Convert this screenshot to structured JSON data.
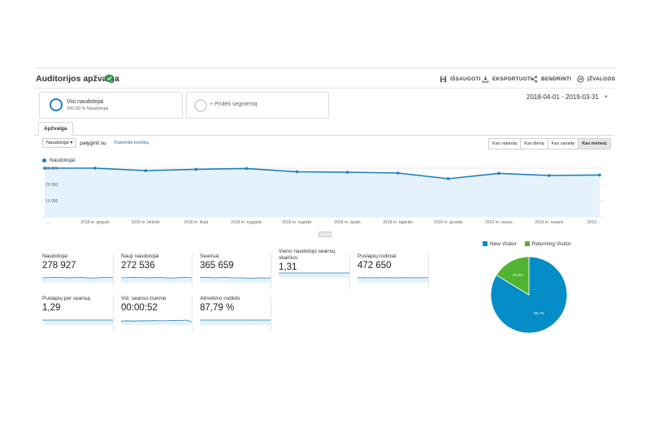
{
  "header": {
    "title": "Auditorijos apžvalga",
    "actions": [
      {
        "label": "IŠSAUGOTI",
        "icon": "save-icon"
      },
      {
        "label": "EKSPORTUOTI",
        "icon": "download-icon"
      },
      {
        "label": "BENDRINTI",
        "icon": "share-icon"
      },
      {
        "label": "ĮŽVALGOS",
        "icon": "insights-icon"
      }
    ]
  },
  "segments": [
    {
      "title": "Visi naudotojai",
      "subtitle": "100,00 % Naudotojai"
    },
    {
      "title": "+ Pridėti segmentą"
    }
  ],
  "date_range": "2018-04-01 - 2019-03-31",
  "tabs": [
    "Apžvalga"
  ],
  "controls": {
    "metric_select": "Naudotojai",
    "compare_text": "palyginti su",
    "pick_metric": "Pasirinkti metriką",
    "granularity": [
      "Kas valandą",
      "Kas dieną",
      "Kas savaitę",
      "Kas mėnesį"
    ],
    "granularity_active": "Kas mėnesį"
  },
  "colors": {
    "accent": "#1c7fc0",
    "green": "#4cae3f",
    "fill": "#e5f2fb"
  },
  "chart_data": [
    {
      "type": "area",
      "series": [
        {
          "name": "Naudotojai",
          "values": [
            30000,
            30000,
            28500,
            29300,
            29800,
            27800,
            27500,
            27000,
            23500,
            26800,
            25500,
            25800
          ]
        }
      ],
      "x": [
        "...",
        "2018 m. gegužė",
        "2018 m. birželis",
        "2018 m. liepa",
        "2018 m. rugpjūtis",
        "2018 m. rugsėjis",
        "2018 m. spalis",
        "2018 m. lapkritis",
        "2018 m. gruodis",
        "2019 m. sausis",
        "2019 m. vasaris",
        "2019..."
      ],
      "y_ticks": [
        "30 000",
        "20 000",
        "10 000"
      ],
      "ylim": [
        0,
        33000
      ],
      "grid": true
    },
    {
      "type": "pie",
      "legend": [
        "New Visitor",
        "Returning Visitor"
      ],
      "values": [
        83.7,
        16.3
      ],
      "labels": [
        "83,7%",
        "16,3%"
      ],
      "colors": [
        "#058dc7",
        "#50b432"
      ],
      "legend_position": "top"
    }
  ],
  "metrics": [
    {
      "label": "Naudotojai",
      "value": "278 927",
      "spark": [
        0.5,
        0.52,
        0.55,
        0.53,
        0.5,
        0.52,
        0.54,
        0.5,
        0.48,
        0.52,
        0.55,
        0.5
      ]
    },
    {
      "label": "Nauji naudotojai",
      "value": "272 536",
      "spark": [
        0.5,
        0.52,
        0.55,
        0.53,
        0.5,
        0.52,
        0.54,
        0.5,
        0.48,
        0.52,
        0.55,
        0.5
      ]
    },
    {
      "label": "Seansai",
      "value": "365 659",
      "spark": [
        0.55,
        0.55,
        0.5,
        0.52,
        0.54,
        0.5,
        0.5,
        0.49,
        0.44,
        0.5,
        0.48,
        0.5
      ]
    },
    {
      "label": "Vieno naudotojo seansų skaičius",
      "value": "1,31",
      "spark": [
        0.5,
        0.5,
        0.5,
        0.5,
        0.5,
        0.5,
        0.5,
        0.5,
        0.5,
        0.5,
        0.5,
        0.5
      ]
    },
    {
      "label": "Puslapių rodiniai",
      "value": "472 650",
      "spark": [
        0.5,
        0.52,
        0.5,
        0.52,
        0.5,
        0.52,
        0.5,
        0.52,
        0.5,
        0.52,
        0.5,
        0.52
      ]
    },
    {
      "label": "Puslapių per seansą",
      "value": "1,29",
      "spark": [
        0.5,
        0.5,
        0.5,
        0.5,
        0.5,
        0.5,
        0.5,
        0.5,
        0.5,
        0.5,
        0.5,
        0.5
      ]
    },
    {
      "label": "Vid. seanso trukmė",
      "value": "00:00:52",
      "spark": [
        0.4,
        0.42,
        0.4,
        0.43,
        0.42,
        0.45,
        0.43,
        0.44,
        0.46,
        0.45,
        0.5,
        0.3
      ]
    },
    {
      "label": "Atmetimo rodiklis",
      "value": "87,79 %",
      "spark": [
        0.5,
        0.5,
        0.5,
        0.5,
        0.5,
        0.5,
        0.5,
        0.5,
        0.5,
        0.5,
        0.5,
        0.5
      ]
    }
  ]
}
